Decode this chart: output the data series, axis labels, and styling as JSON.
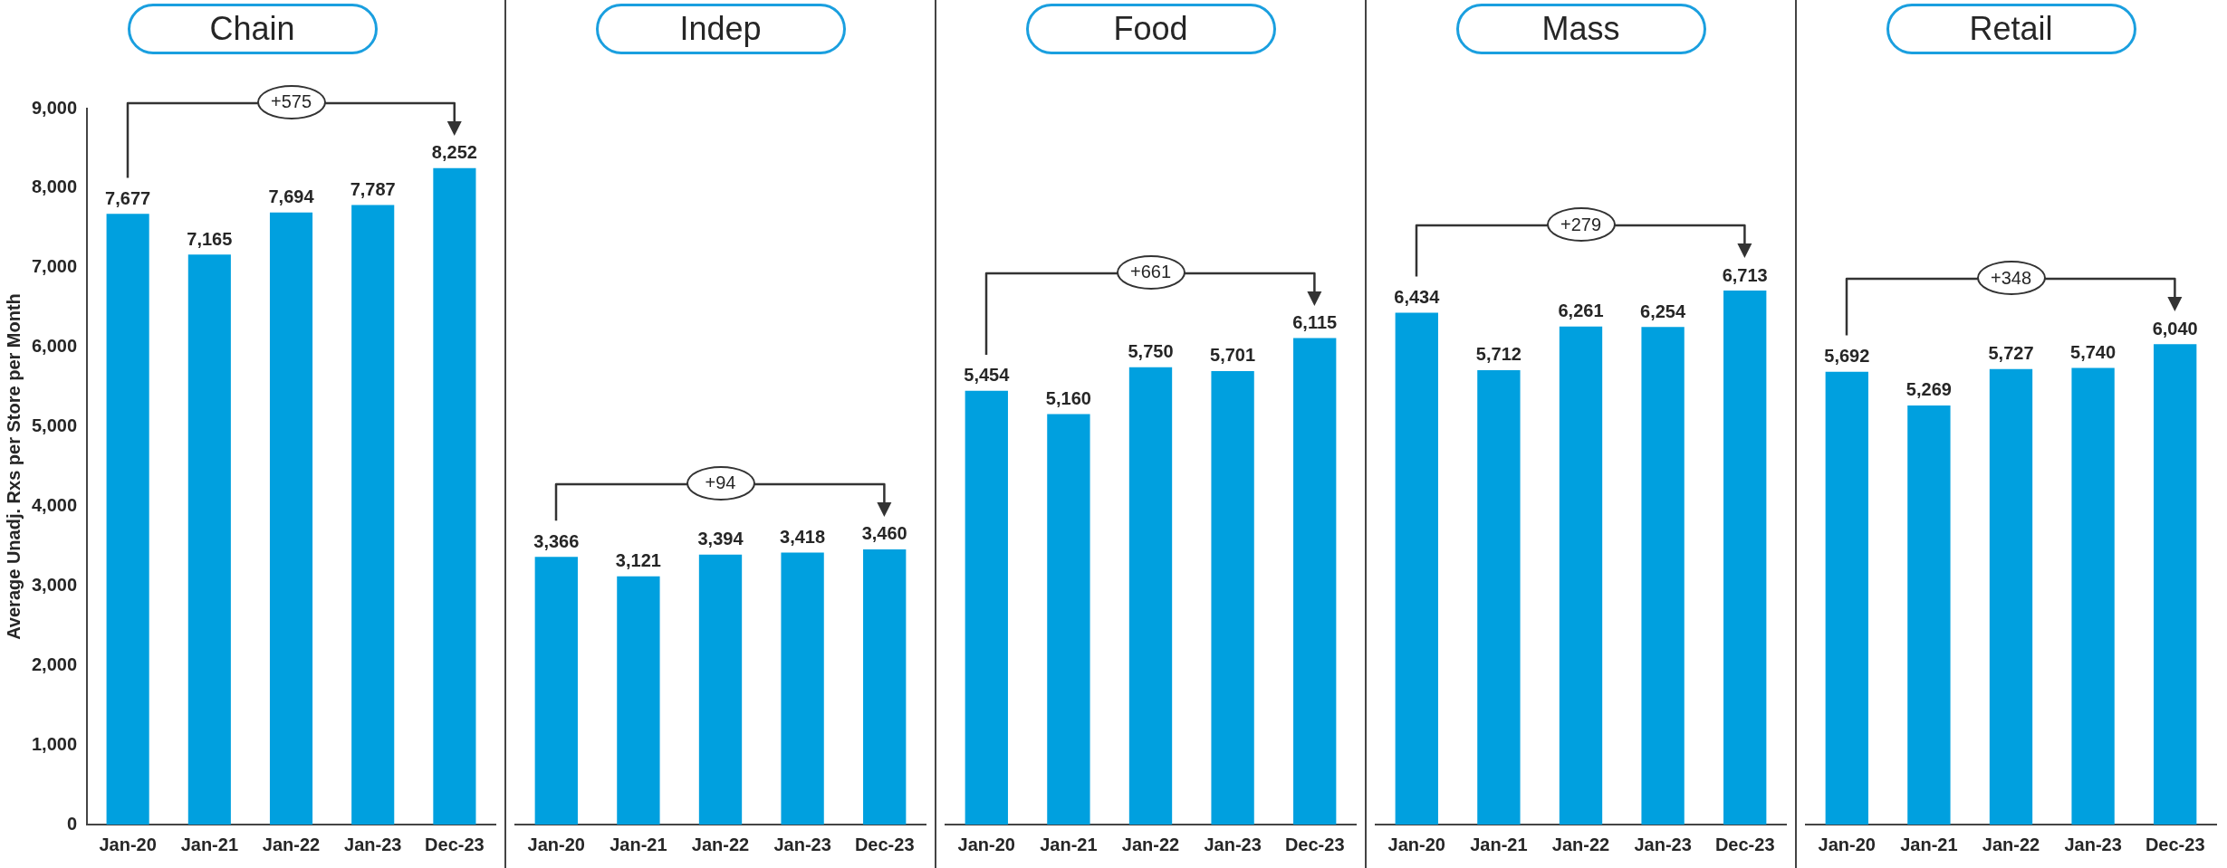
{
  "chart_data": [
    {
      "type": "bar",
      "title": "Chain",
      "ylabel": "Average Unadj. Rxs per Store per Month",
      "categories": [
        "Jan-20",
        "Jan-21",
        "Jan-22",
        "Jan-23",
        "Dec-23"
      ],
      "values": [
        7677,
        7165,
        7694,
        7787,
        8252
      ],
      "value_labels": [
        "7,677",
        "7,165",
        "7,694",
        "7,787",
        "8,252"
      ],
      "color": "#00a0df",
      "ylim": [
        0,
        9000
      ],
      "yticks": [
        0,
        {
          "value": 1000,
          "label": "1,000"
        },
        {
          "value": 2000,
          "label": "2,000"
        },
        {
          "value": 3000,
          "label": "3,000"
        },
        {
          "value": 4000,
          "label": "4,000"
        },
        {
          "value": 5000,
          "label": "5,000"
        },
        {
          "value": 6000,
          "label": "6,000"
        },
        {
          "value": 7000,
          "label": "7,000"
        },
        {
          "value": 8000,
          "label": "8,000"
        },
        {
          "value": 9000,
          "label": "9,000"
        }
      ],
      "annotations": [
        "+575"
      ]
    },
    {
      "type": "bar",
      "title": "Indep",
      "categories": [
        "Jan-20",
        "Jan-21",
        "Jan-22",
        "Jan-23",
        "Dec-23"
      ],
      "values": [
        3366,
        3121,
        3394,
        3418,
        3460
      ],
      "value_labels": [
        "3,366",
        "3,121",
        "3,394",
        "3,418",
        "3,460"
      ],
      "color": "#00a0df",
      "ylim": [
        0,
        9000
      ],
      "tick_labels": "x",
      "annotations": [
        "+94"
      ]
    },
    {
      "type": "bar",
      "title": "Food",
      "categories": [
        "Jan-20",
        "Jan-21",
        "Jan-22",
        "Jan-23",
        "Dec-23"
      ],
      "values": [
        5454,
        5160,
        5750,
        5701,
        6115
      ],
      "value_labels": [
        "5,454",
        "5,160",
        "5,750",
        "5,701",
        "6,115"
      ],
      "color": "#00a0df",
      "ylim": [
        0,
        9000
      ],
      "tick_labels": "x",
      "annotations": [
        "+661"
      ]
    },
    {
      "type": "bar",
      "title": "Mass",
      "categories": [
        "Jan-20",
        "Jan-21",
        "Jan-22",
        "Jan-23",
        "Dec-23"
      ],
      "values": [
        6434,
        5712,
        6261,
        6254,
        6713
      ],
      "value_labels": [
        "6,434",
        "5,712",
        "6,261",
        "6,254",
        "6,713"
      ],
      "color": "#00a0df",
      "ylim": [
        0,
        9000
      ],
      "tick_labels": "x",
      "annotations": [
        "+279"
      ]
    },
    {
      "type": "bar",
      "title": "Retail",
      "categories": [
        "Jan-20",
        "Jan-21",
        "Jan-22",
        "Jan-23",
        "Dec-23"
      ],
      "values": [
        5692,
        5269,
        5727,
        5740,
        6040
      ],
      "value_labels": [
        "5,692",
        "5,269",
        "5,727",
        "5,740",
        "6,040"
      ],
      "color": "#00a0df",
      "ylim": [
        0,
        9000
      ],
      "tick_labels": "x",
      "annotations": [
        "+348"
      ]
    }
  ]
}
